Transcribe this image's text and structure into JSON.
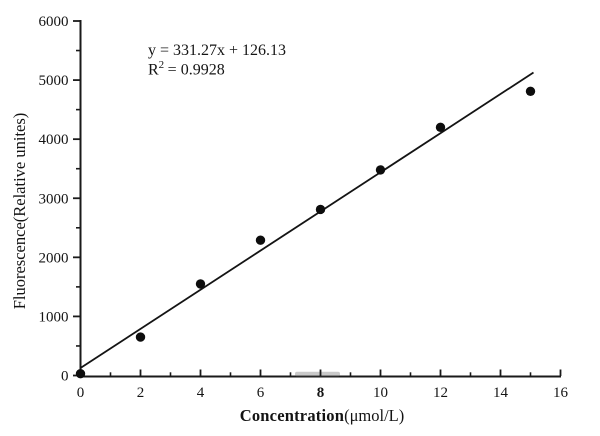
{
  "chart_data": {
    "type": "scatter",
    "title": "",
    "xlabel": "Concentration(μmol/L)",
    "xlabel_word": "Concentration",
    "xlabel_unit": "(μmol/L)",
    "ylabel": "Fluorescence(Relative unites)",
    "points": [
      {
        "x": 0,
        "y": 30
      },
      {
        "x": 2,
        "y": 650
      },
      {
        "x": 4,
        "y": 1550
      },
      {
        "x": 6,
        "y": 2290
      },
      {
        "x": 8,
        "y": 2810
      },
      {
        "x": 10,
        "y": 3480
      },
      {
        "x": 12,
        "y": 4200
      },
      {
        "x": 15,
        "y": 4810
      }
    ],
    "xlim": [
      0,
      16
    ],
    "ylim": [
      0,
      6000
    ],
    "x_major_ticks": [
      0,
      2,
      4,
      6,
      8,
      10,
      12,
      14,
      16
    ],
    "x_minor_ticks": [
      1,
      3,
      5,
      7,
      9,
      11,
      13,
      15
    ],
    "y_major_ticks": [
      0,
      1000,
      2000,
      3000,
      4000,
      5000,
      6000
    ],
    "y_minor_ticks": [
      500,
      1500,
      2500,
      3500,
      4500,
      5500
    ],
    "emphasized_x_tick": 8,
    "grid": false,
    "legend": null,
    "fit_line": {
      "slope": 331.27,
      "intercept": 126.13,
      "x_start": 0,
      "x_end": 15.1
    },
    "annotation": {
      "equation": "y = 331.27x + 126.13",
      "r_label": "R",
      "r_exponent": "2",
      "r_value": "= 0.9928"
    },
    "marker": {
      "shape": "circle",
      "color": "#0d0d0d",
      "radius": 4.7
    },
    "line_color": "#141414",
    "axis_color": "#1a1a1a",
    "text_color": "#141414",
    "background": "#ffffff"
  }
}
